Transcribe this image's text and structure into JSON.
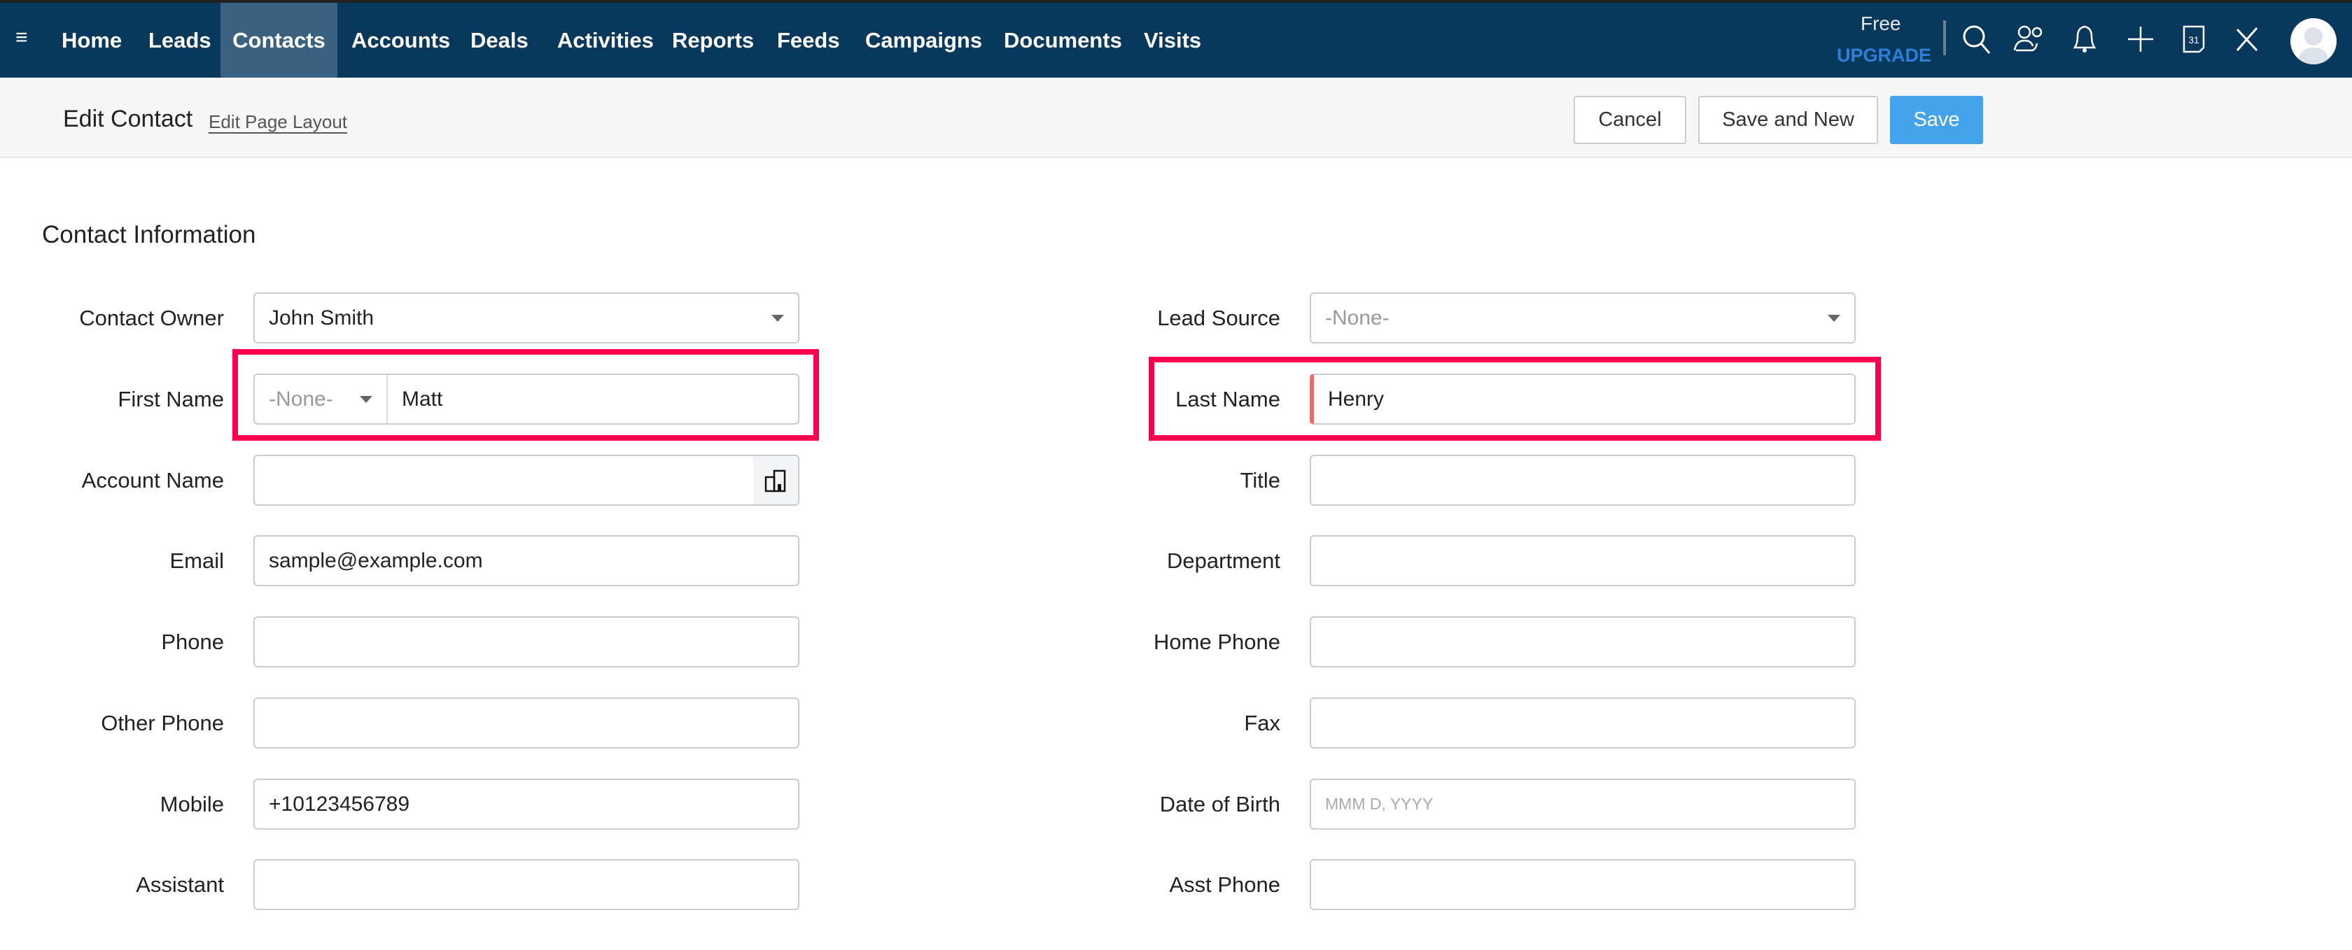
{
  "nav": {
    "items": [
      "Home",
      "Leads",
      "Contacts",
      "Accounts",
      "Deals",
      "Activities",
      "Reports",
      "Feeds",
      "Campaigns",
      "Documents",
      "Visits"
    ],
    "active": "Contacts",
    "plan": "Free",
    "upgrade": "UPGRADE",
    "icons": [
      "search-icon",
      "contacts-share-icon",
      "bell-icon",
      "plus-icon",
      "calendar-icon",
      "tools-icon"
    ],
    "calendar_day": "31"
  },
  "header": {
    "title": "Edit Contact",
    "layout_link": "Edit Page Layout",
    "cancel": "Cancel",
    "save_new": "Save and New",
    "save": "Save"
  },
  "section": {
    "title": "Contact Information"
  },
  "left_fields": [
    {
      "label": "Contact Owner",
      "value": "John Smith",
      "type": "select"
    },
    {
      "label": "First Name",
      "salutation": "-None-",
      "value": "Matt",
      "type": "name"
    },
    {
      "label": "Account Name",
      "value": "",
      "type": "lookup"
    },
    {
      "label": "Email",
      "value": "sample@example.com"
    },
    {
      "label": "Phone",
      "value": ""
    },
    {
      "label": "Other Phone",
      "value": ""
    },
    {
      "label": "Mobile",
      "value": "+10123456789"
    },
    {
      "label": "Assistant",
      "value": ""
    }
  ],
  "right_fields": [
    {
      "label": "Lead Source",
      "value": "-None-",
      "type": "select"
    },
    {
      "label": "Last Name",
      "value": "Henry",
      "type": "mandatory"
    },
    {
      "label": "Title",
      "value": ""
    },
    {
      "label": "Department",
      "value": ""
    },
    {
      "label": "Home Phone",
      "value": ""
    },
    {
      "label": "Fax",
      "value": ""
    },
    {
      "label": "Date of Birth",
      "placeholder": "MMM D, YYYY",
      "value": "",
      "type": "date"
    },
    {
      "label": "Asst Phone",
      "value": ""
    }
  ],
  "colors": {
    "nav_bg": "#09385d",
    "active_tab": "#3b6180",
    "primary": "#44a3eb",
    "highlight": "#ff0050",
    "mandatory": "#f26b63",
    "upgrade": "#2e7fd8"
  }
}
